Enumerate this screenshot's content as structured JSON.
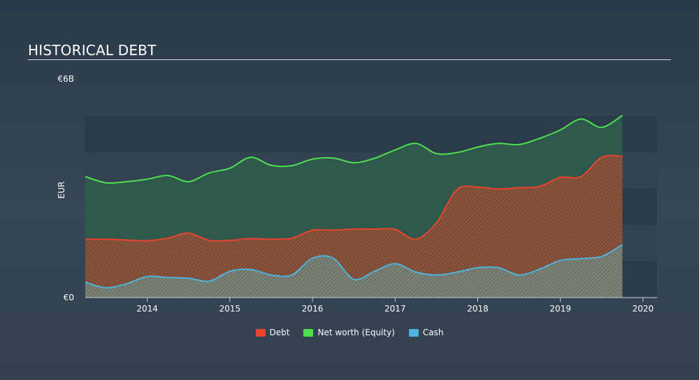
{
  "chart_data": {
    "type": "area",
    "title": "HISTORICAL DEBT",
    "xlabel": "",
    "ylabel": "EUR",
    "xlim": [
      2013.25,
      2020.17
    ],
    "ylim": [
      0,
      6
    ],
    "y_ticks": [
      {
        "value": 6,
        "label": "€6B"
      },
      {
        "value": 0,
        "label": "€0"
      }
    ],
    "x_ticks": [
      {
        "value": 2014,
        "label": "2014"
      },
      {
        "value": 2015,
        "label": "2015"
      },
      {
        "value": 2016,
        "label": "2016"
      },
      {
        "value": 2017,
        "label": "2017"
      },
      {
        "value": 2018,
        "label": "2018"
      },
      {
        "value": 2019,
        "label": "2019"
      },
      {
        "value": 2020,
        "label": "2020"
      }
    ],
    "legend_position": "bottom-center",
    "series": [
      {
        "name": "Net worth (Equity)",
        "color": "#4ee04e",
        "points": [
          [
            2013.25,
            3.32
          ],
          [
            2013.5,
            3.15
          ],
          [
            2013.75,
            3.18
          ],
          [
            2014.0,
            3.25
          ],
          [
            2014.25,
            3.35
          ],
          [
            2014.5,
            3.18
          ],
          [
            2014.75,
            3.42
          ],
          [
            2015.0,
            3.55
          ],
          [
            2015.25,
            3.85
          ],
          [
            2015.5,
            3.63
          ],
          [
            2015.75,
            3.62
          ],
          [
            2016.0,
            3.8
          ],
          [
            2016.25,
            3.83
          ],
          [
            2016.5,
            3.7
          ],
          [
            2016.75,
            3.82
          ],
          [
            2017.0,
            4.05
          ],
          [
            2017.25,
            4.23
          ],
          [
            2017.5,
            3.95
          ],
          [
            2017.75,
            3.98
          ],
          [
            2018.0,
            4.13
          ],
          [
            2018.25,
            4.23
          ],
          [
            2018.5,
            4.2
          ],
          [
            2018.75,
            4.37
          ],
          [
            2019.0,
            4.6
          ],
          [
            2019.25,
            4.9
          ],
          [
            2019.5,
            4.67
          ],
          [
            2019.75,
            5.0
          ]
        ]
      },
      {
        "name": "Debt",
        "color": "#e8442e",
        "points": [
          [
            2013.25,
            1.6
          ],
          [
            2013.5,
            1.6
          ],
          [
            2013.75,
            1.58
          ],
          [
            2014.0,
            1.56
          ],
          [
            2014.25,
            1.63
          ],
          [
            2014.5,
            1.77
          ],
          [
            2014.75,
            1.57
          ],
          [
            2015.0,
            1.57
          ],
          [
            2015.25,
            1.62
          ],
          [
            2015.5,
            1.6
          ],
          [
            2015.75,
            1.63
          ],
          [
            2016.0,
            1.85
          ],
          [
            2016.25,
            1.85
          ],
          [
            2016.5,
            1.88
          ],
          [
            2016.75,
            1.88
          ],
          [
            2017.0,
            1.87
          ],
          [
            2017.25,
            1.6
          ],
          [
            2017.5,
            2.05
          ],
          [
            2017.75,
            2.97
          ],
          [
            2018.0,
            3.03
          ],
          [
            2018.25,
            2.98
          ],
          [
            2018.5,
            3.02
          ],
          [
            2018.75,
            3.05
          ],
          [
            2019.0,
            3.3
          ],
          [
            2019.25,
            3.32
          ],
          [
            2019.5,
            3.85
          ],
          [
            2019.75,
            3.88
          ]
        ]
      },
      {
        "name": "Cash",
        "color": "#4fb4dd",
        "points": [
          [
            2013.25,
            0.42
          ],
          [
            2013.5,
            0.27
          ],
          [
            2013.75,
            0.38
          ],
          [
            2014.0,
            0.58
          ],
          [
            2014.25,
            0.55
          ],
          [
            2014.5,
            0.53
          ],
          [
            2014.75,
            0.45
          ],
          [
            2015.0,
            0.72
          ],
          [
            2015.25,
            0.77
          ],
          [
            2015.5,
            0.62
          ],
          [
            2015.75,
            0.62
          ],
          [
            2016.0,
            1.08
          ],
          [
            2016.25,
            1.08
          ],
          [
            2016.5,
            0.5
          ],
          [
            2016.75,
            0.72
          ],
          [
            2017.0,
            0.93
          ],
          [
            2017.25,
            0.7
          ],
          [
            2017.5,
            0.62
          ],
          [
            2017.75,
            0.7
          ],
          [
            2018.0,
            0.82
          ],
          [
            2018.25,
            0.82
          ],
          [
            2018.5,
            0.62
          ],
          [
            2018.75,
            0.78
          ],
          [
            2019.0,
            1.02
          ],
          [
            2019.25,
            1.07
          ],
          [
            2019.5,
            1.13
          ],
          [
            2019.75,
            1.45
          ]
        ]
      }
    ],
    "legend": [
      {
        "label": "Debt",
        "color": "#e8442e"
      },
      {
        "label": "Net worth (Equity)",
        "color": "#4ee04e"
      },
      {
        "label": "Cash",
        "color": "#4fb4dd"
      }
    ]
  }
}
